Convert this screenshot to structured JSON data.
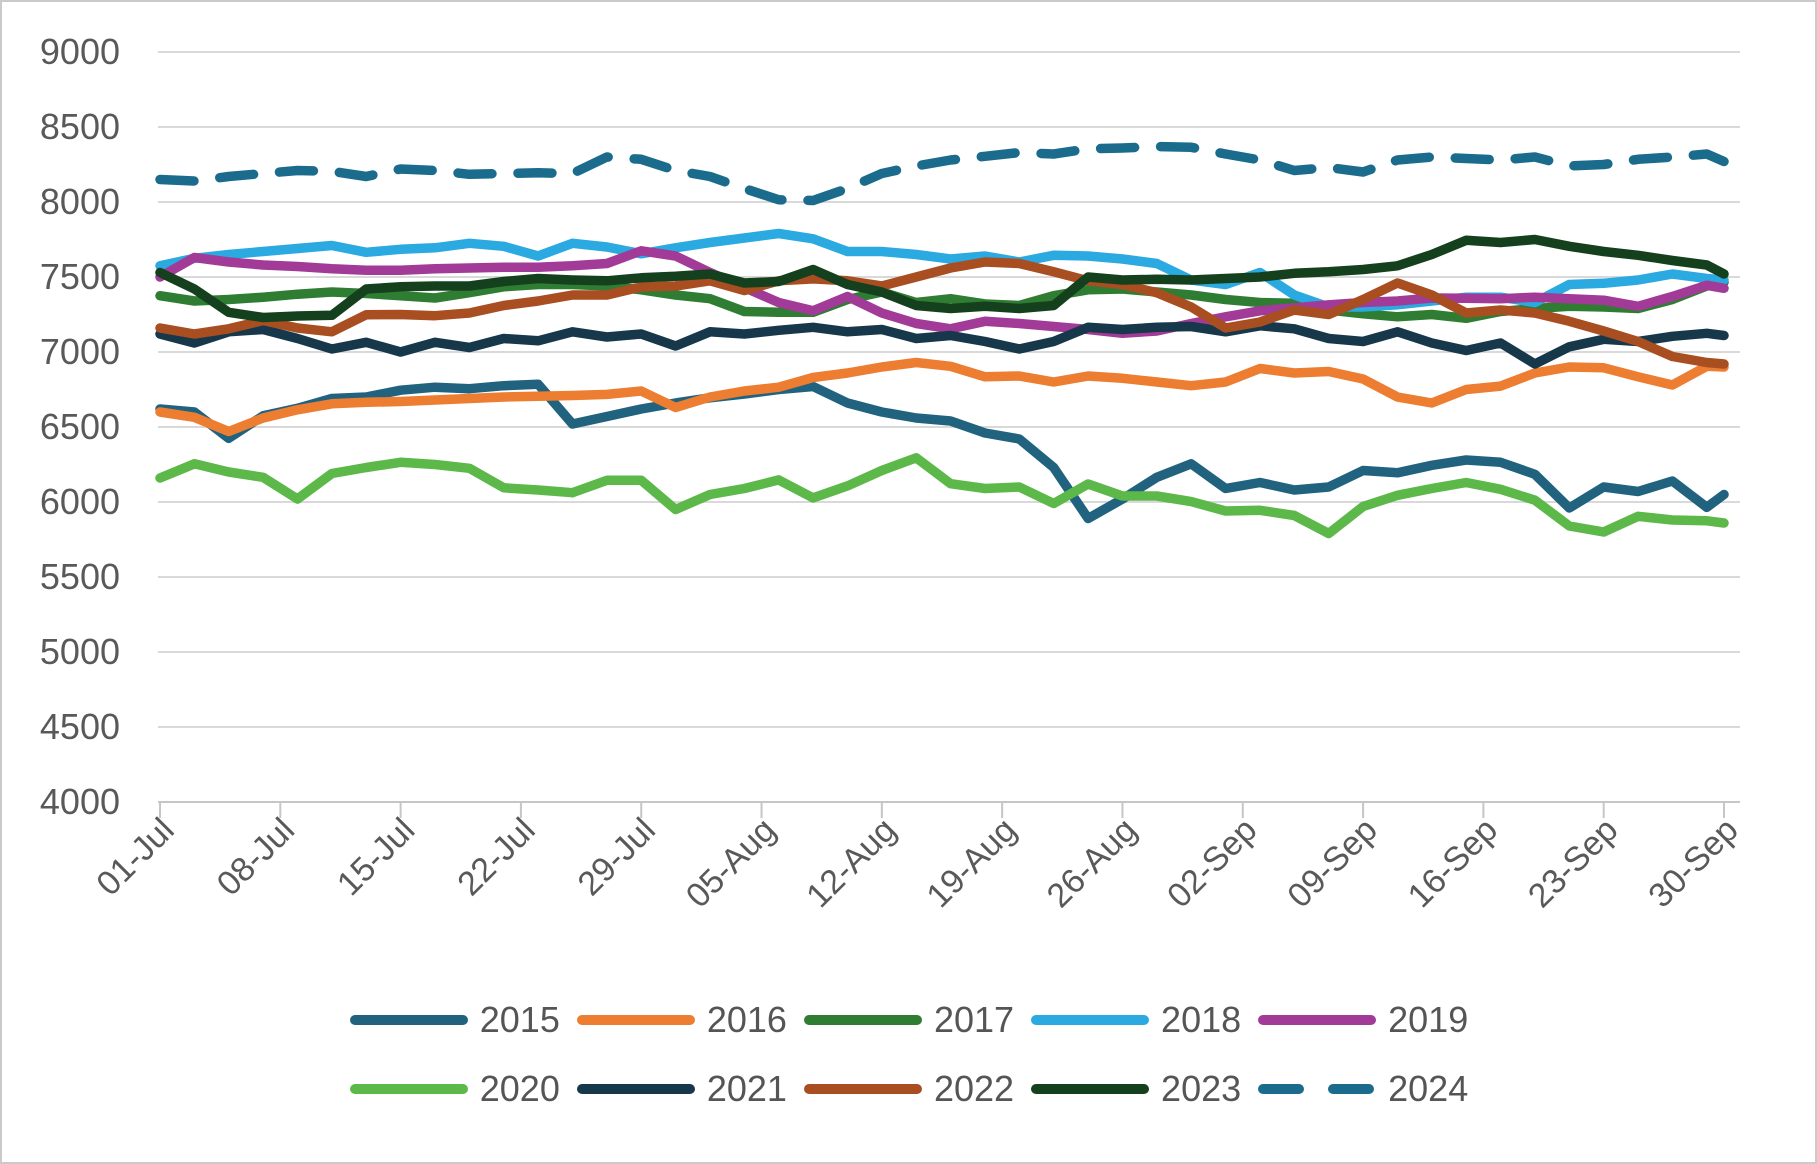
{
  "chart_data": {
    "type": "line",
    "title": "",
    "xlabel": "",
    "ylabel": "",
    "grid": "horizontal",
    "legend_position": "bottom-two-rows",
    "y_axis": {
      "min": 4000,
      "max": 9000,
      "step": 500,
      "tick_labels": [
        "9000",
        "8500",
        "8000",
        "7500",
        "7000",
        "6500",
        "6000",
        "5500",
        "5000",
        "4500",
        "4000"
      ]
    },
    "x_axis": {
      "tick_labels": [
        "01-Jul",
        "08-Jul",
        "15-Jul",
        "22-Jul",
        "29-Jul",
        "05-Aug",
        "12-Aug",
        "19-Aug",
        "26-Aug",
        "02-Sep",
        "09-Sep",
        "16-Sep",
        "23-Sep",
        "30-Sep"
      ],
      "tick_days": [
        0,
        7,
        14,
        21,
        28,
        35,
        42,
        49,
        56,
        63,
        70,
        77,
        84,
        91
      ],
      "span_days": 91
    },
    "sample_days": [
      0,
      2,
      4,
      6,
      8,
      10,
      12,
      14,
      16,
      18,
      20,
      22,
      24,
      26,
      28,
      30,
      32,
      34,
      36,
      38,
      40,
      42,
      44,
      46,
      48,
      50,
      52,
      54,
      56,
      58,
      60,
      62,
      64,
      66,
      68,
      70,
      72,
      74,
      76,
      78,
      80,
      82,
      84,
      86,
      88,
      90,
      91
    ],
    "sample_dates": [
      "01-Jul",
      "03-Jul",
      "05-Jul",
      "07-Jul",
      "09-Jul",
      "11-Jul",
      "13-Jul",
      "15-Jul",
      "17-Jul",
      "19-Jul",
      "21-Jul",
      "23-Jul",
      "25-Jul",
      "27-Jul",
      "29-Jul",
      "31-Jul",
      "02-Aug",
      "04-Aug",
      "06-Aug",
      "08-Aug",
      "10-Aug",
      "12-Aug",
      "14-Aug",
      "16-Aug",
      "18-Aug",
      "20-Aug",
      "22-Aug",
      "24-Aug",
      "26-Aug",
      "28-Aug",
      "30-Aug",
      "01-Sep",
      "03-Sep",
      "05-Sep",
      "07-Sep",
      "09-Sep",
      "11-Sep",
      "13-Sep",
      "15-Sep",
      "17-Sep",
      "19-Sep",
      "21-Sep",
      "23-Sep",
      "25-Sep",
      "27-Sep",
      "29-Sep",
      "30-Sep"
    ],
    "series": [
      {
        "name": "2015",
        "color": "#21637F",
        "style": "solid",
        "values": [
          6620,
          6600,
          6425,
          6575,
          6625,
          6690,
          6700,
          6745,
          6765,
          6755,
          6775,
          6785,
          6520,
          6570,
          6620,
          6660,
          6695,
          6720,
          6750,
          6770,
          6660,
          6600,
          6560,
          6540,
          6460,
          6420,
          6230,
          5890,
          6020,
          6165,
          6255,
          6090,
          6130,
          6080,
          6100,
          6210,
          6195,
          6245,
          6280,
          6265,
          6185,
          5960,
          6100,
          6070,
          6140,
          5965,
          6050
        ]
      },
      {
        "name": "2016",
        "color": "#ED7D31",
        "style": "solid",
        "values": [
          6600,
          6565,
          6470,
          6560,
          6615,
          6655,
          6665,
          6670,
          6680,
          6690,
          6700,
          6705,
          6710,
          6717,
          6740,
          6630,
          6700,
          6740,
          6765,
          6830,
          6860,
          6900,
          6930,
          6905,
          6835,
          6840,
          6800,
          6840,
          6825,
          6800,
          6775,
          6800,
          6890,
          6860,
          6870,
          6820,
          6700,
          6660,
          6750,
          6773,
          6860,
          6900,
          6895,
          6835,
          6780,
          6905,
          6900
        ]
      },
      {
        "name": "2017",
        "color": "#2E7D32",
        "style": "solid",
        "values": [
          7375,
          7340,
          7350,
          7365,
          7385,
          7400,
          7390,
          7375,
          7360,
          7395,
          7435,
          7450,
          7450,
          7440,
          7415,
          7380,
          7355,
          7270,
          7265,
          7265,
          7350,
          7400,
          7330,
          7355,
          7320,
          7310,
          7375,
          7415,
          7420,
          7400,
          7380,
          7350,
          7330,
          7325,
          7280,
          7255,
          7235,
          7250,
          7225,
          7270,
          7290,
          7305,
          7300,
          7290,
          7350,
          7440,
          7465
        ]
      },
      {
        "name": "2018",
        "color": "#2BA9E1",
        "style": "solid",
        "values": [
          7575,
          7625,
          7650,
          7670,
          7690,
          7710,
          7665,
          7685,
          7695,
          7725,
          7705,
          7640,
          7725,
          7700,
          7655,
          7695,
          7730,
          7760,
          7790,
          7755,
          7670,
          7670,
          7650,
          7620,
          7640,
          7600,
          7645,
          7640,
          7620,
          7590,
          7480,
          7450,
          7530,
          7380,
          7300,
          7300,
          7315,
          7340,
          7365,
          7365,
          7330,
          7450,
          7458,
          7480,
          7520,
          7490,
          7480
        ]
      },
      {
        "name": "2019",
        "color": "#A23A97",
        "style": "solid",
        "values": [
          7500,
          7630,
          7600,
          7580,
          7570,
          7555,
          7545,
          7545,
          7555,
          7560,
          7565,
          7565,
          7575,
          7590,
          7675,
          7640,
          7530,
          7430,
          7330,
          7275,
          7370,
          7260,
          7190,
          7155,
          7205,
          7190,
          7170,
          7150,
          7125,
          7140,
          7190,
          7235,
          7275,
          7295,
          7315,
          7330,
          7340,
          7360,
          7358,
          7355,
          7365,
          7355,
          7345,
          7305,
          7370,
          7445,
          7425
        ]
      },
      {
        "name": "2020",
        "color": "#5CB849",
        "style": "solid",
        "values": [
          6160,
          6255,
          6200,
          6165,
          6020,
          6190,
          6230,
          6265,
          6250,
          6225,
          6095,
          6080,
          6062,
          6145,
          6145,
          5950,
          6050,
          6090,
          6147,
          6027,
          6107,
          6210,
          6295,
          6122,
          6090,
          6100,
          5990,
          6120,
          6040,
          6040,
          6003,
          5940,
          5945,
          5910,
          5790,
          5970,
          6045,
          6090,
          6130,
          6085,
          6012,
          5840,
          5800,
          5905,
          5880,
          5875,
          5860
        ]
      },
      {
        "name": "2021",
        "color": "#17374B",
        "style": "solid",
        "values": [
          7120,
          7060,
          7135,
          7150,
          7090,
          7020,
          7065,
          7000,
          7065,
          7030,
          7090,
          7075,
          7135,
          7100,
          7120,
          7040,
          7135,
          7120,
          7145,
          7165,
          7135,
          7150,
          7090,
          7110,
          7070,
          7020,
          7070,
          7165,
          7150,
          7165,
          7170,
          7135,
          7175,
          7155,
          7090,
          7070,
          7135,
          7060,
          7010,
          7060,
          6920,
          7035,
          7085,
          7070,
          7105,
          7125,
          7110
        ]
      },
      {
        "name": "2022",
        "color": "#A84E21",
        "style": "solid",
        "values": [
          7160,
          7120,
          7155,
          7210,
          7160,
          7135,
          7248,
          7250,
          7242,
          7260,
          7310,
          7340,
          7380,
          7380,
          7434,
          7440,
          7475,
          7410,
          7475,
          7487,
          7475,
          7440,
          7500,
          7560,
          7600,
          7590,
          7535,
          7475,
          7450,
          7395,
          7300,
          7160,
          7200,
          7280,
          7250,
          7350,
          7460,
          7380,
          7260,
          7280,
          7260,
          7205,
          7140,
          7070,
          6970,
          6930,
          6920
        ]
      },
      {
        "name": "2023",
        "color": "#15401D",
        "style": "solid",
        "values": [
          7530,
          7420,
          7265,
          7230,
          7240,
          7245,
          7420,
          7435,
          7440,
          7440,
          7470,
          7490,
          7480,
          7475,
          7495,
          7505,
          7520,
          7460,
          7470,
          7550,
          7450,
          7400,
          7310,
          7290,
          7305,
          7290,
          7310,
          7500,
          7480,
          7485,
          7480,
          7490,
          7500,
          7525,
          7535,
          7550,
          7575,
          7650,
          7745,
          7730,
          7750,
          7705,
          7670,
          7645,
          7610,
          7580,
          7520
        ]
      },
      {
        "name": "2024",
        "color": "#1B6C8C",
        "style": "dashed",
        "values": [
          8150,
          8140,
          8170,
          8190,
          8210,
          8205,
          8170,
          8220,
          8210,
          8185,
          8190,
          8195,
          8190,
          8300,
          8285,
          8210,
          8170,
          8090,
          8015,
          8010,
          8090,
          8190,
          8240,
          8280,
          8305,
          8330,
          8320,
          8355,
          8360,
          8370,
          8365,
          8320,
          8280,
          8210,
          8230,
          8200,
          8280,
          8300,
          8290,
          8280,
          8300,
          8240,
          8250,
          8285,
          8300,
          8320,
          8270
        ]
      }
    ],
    "legend_rows": [
      [
        "2015",
        "2016",
        "2017",
        "2018",
        "2019"
      ],
      [
        "2020",
        "2021",
        "2022",
        "2023",
        "2024"
      ]
    ]
  },
  "colors": {
    "background": "#FFFFFF",
    "border": "#CBC9C9",
    "gridline": "#D9D9D9",
    "axis_line": "#C6C6C6",
    "axis_text": "#595959",
    "legend_text": "#555555"
  }
}
